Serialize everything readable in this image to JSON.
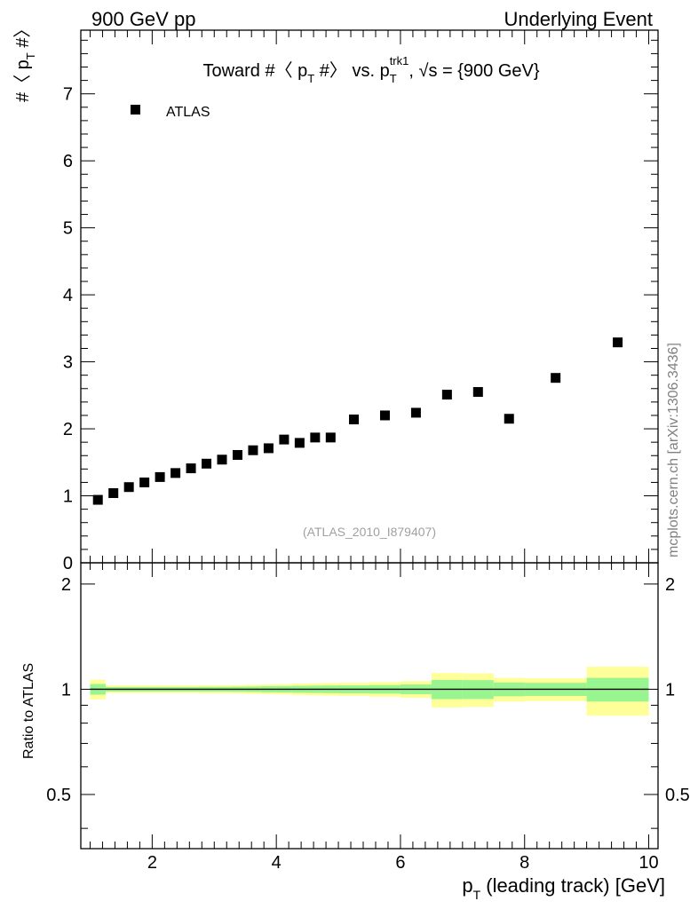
{
  "header": {
    "left": "900 GeV pp",
    "right": "Underlying Event"
  },
  "side_label": "mcplots.cern.ch [arXiv:1306.3436]",
  "chart_data": [
    {
      "type": "scatter",
      "panel": "main",
      "title": {
        "prefix": "Toward #〈 p",
        "sub1": "T",
        "mid": " #〉 vs. p",
        "sub2": "T",
        "sup2": "trk1",
        "suffix": ", √s = {900 GeV}"
      },
      "ylabel": {
        "main": "#〈 p",
        "sub": "T",
        "end": " #〉"
      },
      "xlim": [
        0.85,
        10.15
      ],
      "ylim": [
        0,
        7.95
      ],
      "yticks": [
        "0",
        "1",
        "2",
        "3",
        "4",
        "5",
        "6",
        "7"
      ],
      "legend": {
        "label": "ATLAS",
        "position": "top-left"
      },
      "annotation": "(ATLAS_2010_I879407)",
      "series": [
        {
          "name": "ATLAS",
          "marker": "square",
          "color": "#000000",
          "x": [
            1.125,
            1.375,
            1.625,
            1.875,
            2.125,
            2.375,
            2.625,
            2.875,
            3.125,
            3.375,
            3.625,
            3.875,
            4.125,
            4.375,
            4.625,
            4.875,
            5.25,
            5.75,
            6.25,
            6.75,
            7.25,
            7.75,
            8.5,
            9.5
          ],
          "y": [
            0.94,
            1.04,
            1.13,
            1.2,
            1.28,
            1.34,
            1.41,
            1.48,
            1.54,
            1.61,
            1.68,
            1.71,
            1.84,
            1.79,
            1.87,
            1.87,
            2.14,
            2.2,
            2.24,
            2.51,
            2.55,
            2.15,
            2.76,
            3.29
          ]
        }
      ]
    },
    {
      "type": "area",
      "panel": "ratio",
      "ylabel": "Ratio to ATLAS",
      "xlabel": {
        "main": "p",
        "sub": "T",
        "rest": " (leading track) [GeV]"
      },
      "xlim": [
        0.85,
        10.15
      ],
      "ylim": [
        0.35,
        2.3
      ],
      "xticks": [
        "2",
        "4",
        "6",
        "8",
        "10"
      ],
      "yticks": [
        "0.5",
        "1",
        "2"
      ],
      "reference_line": 1,
      "colors": {
        "inner": "#99f58f",
        "outer": "#ffff99",
        "line": "#000000"
      },
      "bins": [
        {
          "lo": 1.0,
          "hi": 1.25,
          "inner": [
            0.965,
            1.035
          ],
          "outer": [
            0.935,
            1.065
          ]
        },
        {
          "lo": 1.25,
          "hi": 1.5,
          "inner": [
            0.985,
            1.015
          ],
          "outer": [
            0.975,
            1.025
          ]
        },
        {
          "lo": 1.5,
          "hi": 1.75,
          "inner": [
            0.985,
            1.015
          ],
          "outer": [
            0.975,
            1.025
          ]
        },
        {
          "lo": 1.75,
          "hi": 2.0,
          "inner": [
            0.985,
            1.015
          ],
          "outer": [
            0.975,
            1.025
          ]
        },
        {
          "lo": 2.0,
          "hi": 2.25,
          "inner": [
            0.985,
            1.015
          ],
          "outer": [
            0.975,
            1.025
          ]
        },
        {
          "lo": 2.25,
          "hi": 2.5,
          "inner": [
            0.985,
            1.015
          ],
          "outer": [
            0.975,
            1.025
          ]
        },
        {
          "lo": 2.5,
          "hi": 2.75,
          "inner": [
            0.985,
            1.015
          ],
          "outer": [
            0.975,
            1.025
          ]
        },
        {
          "lo": 2.75,
          "hi": 3.0,
          "inner": [
            0.984,
            1.016
          ],
          "outer": [
            0.973,
            1.027
          ]
        },
        {
          "lo": 3.0,
          "hi": 3.25,
          "inner": [
            0.984,
            1.016
          ],
          "outer": [
            0.973,
            1.027
          ]
        },
        {
          "lo": 3.25,
          "hi": 3.5,
          "inner": [
            0.983,
            1.017
          ],
          "outer": [
            0.972,
            1.028
          ]
        },
        {
          "lo": 3.5,
          "hi": 3.75,
          "inner": [
            0.982,
            1.018
          ],
          "outer": [
            0.97,
            1.03
          ]
        },
        {
          "lo": 3.75,
          "hi": 4.0,
          "inner": [
            0.98,
            1.02
          ],
          "outer": [
            0.968,
            1.032
          ]
        },
        {
          "lo": 4.0,
          "hi": 4.25,
          "inner": [
            0.979,
            1.021
          ],
          "outer": [
            0.966,
            1.034
          ]
        },
        {
          "lo": 4.25,
          "hi": 4.5,
          "inner": [
            0.977,
            1.023
          ],
          "outer": [
            0.962,
            1.038
          ]
        },
        {
          "lo": 4.5,
          "hi": 4.75,
          "inner": [
            0.976,
            1.024
          ],
          "outer": [
            0.96,
            1.04
          ]
        },
        {
          "lo": 4.75,
          "hi": 5.0,
          "inner": [
            0.975,
            1.025
          ],
          "outer": [
            0.958,
            1.042
          ]
        },
        {
          "lo": 5.0,
          "hi": 5.5,
          "inner": [
            0.974,
            1.026
          ],
          "outer": [
            0.957,
            1.043
          ]
        },
        {
          "lo": 5.5,
          "hi": 6.0,
          "inner": [
            0.972,
            1.028
          ],
          "outer": [
            0.952,
            1.048
          ]
        },
        {
          "lo": 6.0,
          "hi": 6.5,
          "inner": [
            0.968,
            1.032
          ],
          "outer": [
            0.945,
            1.055
          ]
        },
        {
          "lo": 6.5,
          "hi": 7.0,
          "inner": [
            0.937,
            1.063
          ],
          "outer": [
            0.887,
            1.113
          ]
        },
        {
          "lo": 7.0,
          "hi": 7.5,
          "inner": [
            0.938,
            1.062
          ],
          "outer": [
            0.89,
            1.11
          ]
        },
        {
          "lo": 7.5,
          "hi": 8.0,
          "inner": [
            0.955,
            1.045
          ],
          "outer": [
            0.922,
            1.078
          ]
        },
        {
          "lo": 8.0,
          "hi": 9.0,
          "inner": [
            0.957,
            1.043
          ],
          "outer": [
            0.925,
            1.075
          ]
        },
        {
          "lo": 9.0,
          "hi": 10.0,
          "inner": [
            0.922,
            1.078
          ],
          "outer": [
            0.84,
            1.16
          ]
        }
      ]
    }
  ]
}
